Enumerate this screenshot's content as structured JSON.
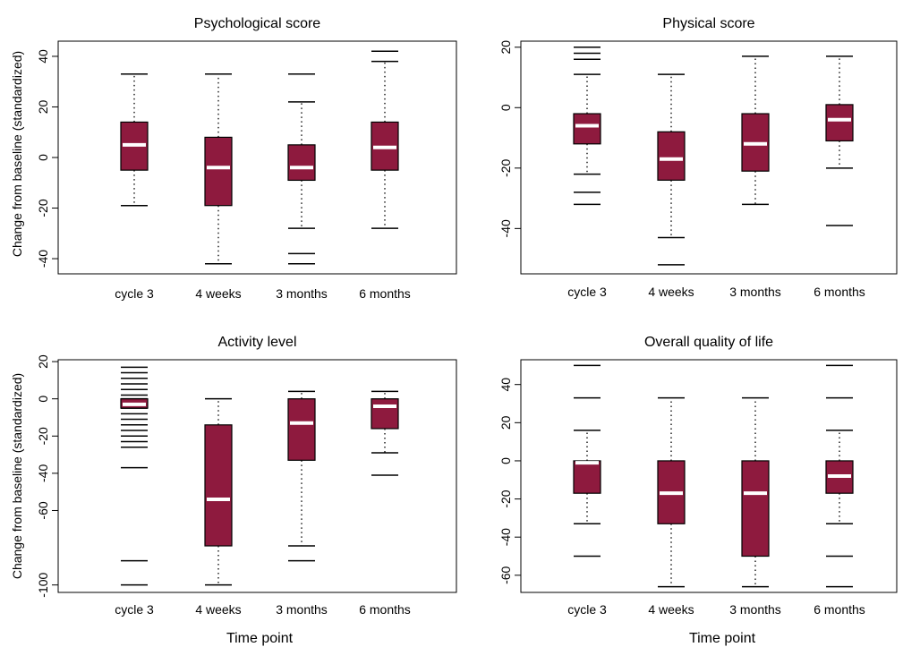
{
  "colors": {
    "box_fill": "#8e1a3e",
    "median": "#ffffff",
    "frame": "#000000"
  },
  "figure": {
    "y_axis_label": "Change from baseline (standardized)",
    "x_axis_label": "Time point"
  },
  "chart_data": [
    {
      "type": "box",
      "title": "Psychological score",
      "ylabel": "Change from baseline (standardized)",
      "xlabel": "",
      "categories": [
        "cycle 3",
        "4 weeks",
        "3 months",
        "6 months"
      ],
      "ylim": [
        -46,
        46
      ],
      "yticks": [
        -40,
        -20,
        0,
        20,
        40
      ],
      "grid": false,
      "boxes": [
        {
          "category": "cycle 3",
          "q1": -5,
          "median": 5,
          "q3": 14,
          "whisker_low": -19,
          "whisker_high": 33,
          "outliers": []
        },
        {
          "category": "4 weeks",
          "q1": -19,
          "median": -4,
          "q3": 8,
          "whisker_low": -42,
          "whisker_high": 33,
          "outliers": []
        },
        {
          "category": "3 months",
          "q1": -9,
          "median": -4,
          "q3": 5,
          "whisker_low": -28,
          "whisker_high": 22,
          "outliers": [
            33,
            -38,
            -42
          ]
        },
        {
          "category": "6 months",
          "q1": -5,
          "median": 4,
          "q3": 14,
          "whisker_low": -28,
          "whisker_high": 38,
          "outliers": [
            42
          ]
        }
      ]
    },
    {
      "type": "box",
      "title": "Physical score",
      "ylabel": "",
      "xlabel": "",
      "categories": [
        "cycle 3",
        "4 weeks",
        "3 months",
        "6 months"
      ],
      "ylim": [
        -55,
        22
      ],
      "yticks": [
        -40,
        -20,
        0,
        20
      ],
      "grid": false,
      "boxes": [
        {
          "category": "cycle 3",
          "q1": -12,
          "median": -6,
          "q3": -2,
          "whisker_low": -22,
          "whisker_high": 11,
          "outliers": [
            20,
            18,
            16,
            -28,
            -32
          ]
        },
        {
          "category": "4 weeks",
          "q1": -24,
          "median": -17,
          "q3": -8,
          "whisker_low": -43,
          "whisker_high": 11,
          "outliers": [
            -52
          ]
        },
        {
          "category": "3 months",
          "q1": -21,
          "median": -12,
          "q3": -2,
          "whisker_low": -32,
          "whisker_high": 17,
          "outliers": []
        },
        {
          "category": "6 months",
          "q1": -11,
          "median": -4,
          "q3": 1,
          "whisker_low": -20,
          "whisker_high": 17,
          "outliers": [
            -39
          ]
        }
      ]
    },
    {
      "type": "box",
      "title": "Activity level",
      "ylabel": "Change from baseline (standardized)",
      "xlabel": "Time point",
      "categories": [
        "cycle 3",
        "4 weeks",
        "3 months",
        "6 months"
      ],
      "ylim": [
        -104,
        21
      ],
      "yticks": [
        -100,
        -60,
        -40,
        -20,
        0,
        20
      ],
      "grid": false,
      "boxes": [
        {
          "category": "cycle 3",
          "q1": -5,
          "median": -3,
          "q3": 0,
          "whisker_low": -5,
          "whisker_high": 0,
          "outliers": [
            17,
            14,
            11,
            8,
            5,
            2,
            -8,
            -11,
            -14,
            -17,
            -20,
            -23,
            -26,
            -37,
            -87,
            -100
          ]
        },
        {
          "category": "4 weeks",
          "q1": -79,
          "median": -54,
          "q3": -14,
          "whisker_low": -100,
          "whisker_high": 0,
          "outliers": []
        },
        {
          "category": "3 months",
          "q1": -33,
          "median": -13,
          "q3": 0,
          "whisker_low": -79,
          "whisker_high": 4,
          "outliers": [
            -87
          ]
        },
        {
          "category": "6 months",
          "q1": -16,
          "median": -4,
          "q3": 0,
          "whisker_low": -29,
          "whisker_high": 4,
          "outliers": [
            -41
          ]
        }
      ]
    },
    {
      "type": "box",
      "title": "Overall quality of life",
      "ylabel": "",
      "xlabel": "Time point",
      "categories": [
        "cycle 3",
        "4 weeks",
        "3 months",
        "6 months"
      ],
      "ylim": [
        -69,
        53
      ],
      "yticks": [
        -60,
        -40,
        -20,
        0,
        20,
        40
      ],
      "grid": false,
      "boxes": [
        {
          "category": "cycle 3",
          "q1": -17,
          "median": -1,
          "q3": 0,
          "whisker_low": -33,
          "whisker_high": 16,
          "outliers": [
            50,
            33,
            -50
          ]
        },
        {
          "category": "4 weeks",
          "q1": -33,
          "median": -17,
          "q3": 0,
          "whisker_low": -66,
          "whisker_high": 33,
          "outliers": []
        },
        {
          "category": "3 months",
          "q1": -50,
          "median": -17,
          "q3": 0,
          "whisker_low": -66,
          "whisker_high": 33,
          "outliers": []
        },
        {
          "category": "6 months",
          "q1": -17,
          "median": -8,
          "q3": 0,
          "whisker_low": -33,
          "whisker_high": 16,
          "outliers": [
            50,
            33,
            -50,
            -66
          ]
        }
      ]
    }
  ]
}
